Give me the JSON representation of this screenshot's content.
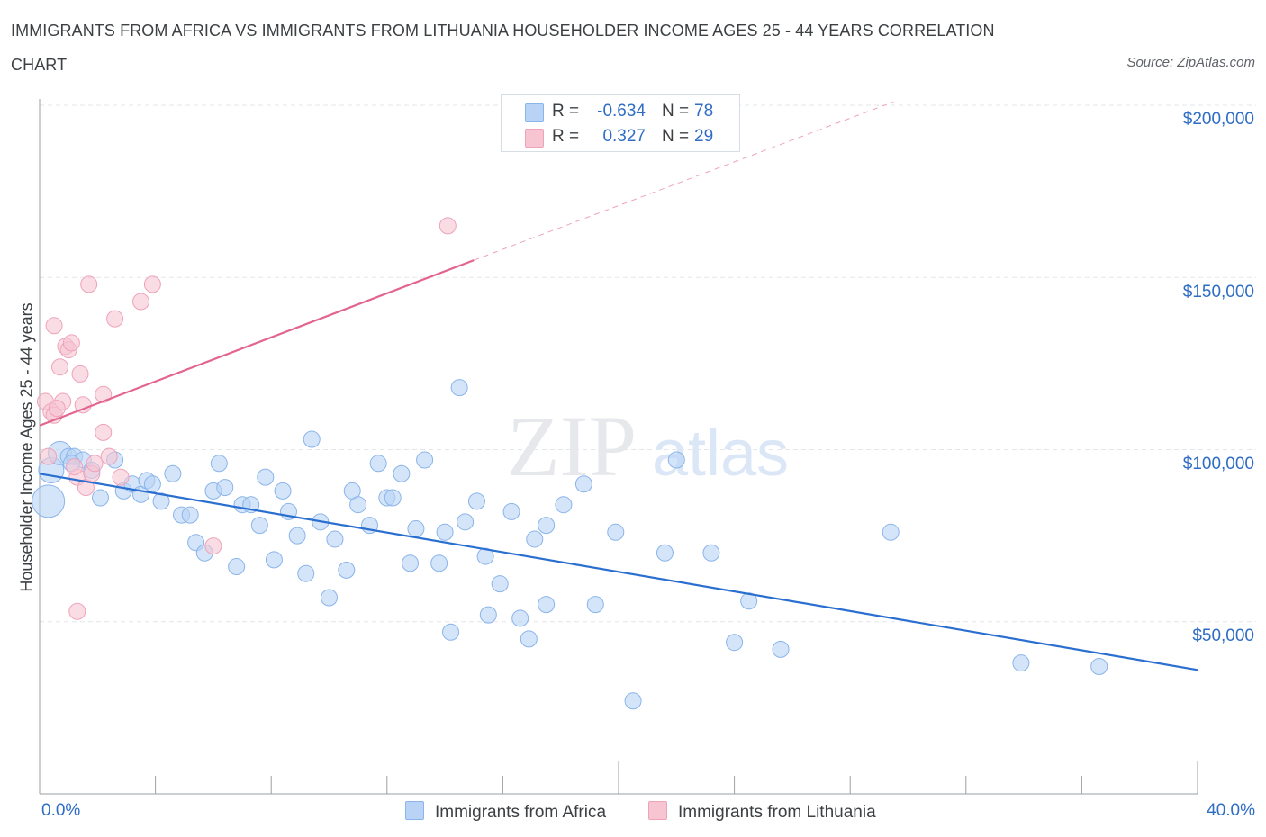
{
  "header": {
    "title_line1": "IMMIGRANTS FROM AFRICA VS IMMIGRANTS FROM LITHUANIA HOUSEHOLDER INCOME AGES 25 - 44 YEARS CORRELATION",
    "title_line2": "CHART",
    "source": "Source: ZipAtlas.com"
  },
  "legend": {
    "rows": [
      {
        "r_label": "R =",
        "r_value": "-0.634",
        "n_label": "N =",
        "n_value": "78"
      },
      {
        "r_label": "R =",
        "r_value": "0.327",
        "n_label": "N =",
        "n_value": "29"
      }
    ]
  },
  "watermark": {
    "zip": "ZIP",
    "atlas": "atlas"
  },
  "colors": {
    "africa_fill": "#b8d3f5",
    "africa_stroke": "#8ab4ea",
    "africa_line": "#2a6fd0",
    "lithuania_fill": "#f7c4d2",
    "lithuania_stroke": "#eea3ba",
    "lithuania_line": "#e2648f",
    "tick_label": "#2f6dc5",
    "grid": "#e3e6ea"
  },
  "chart_data": {
    "type": "scatter",
    "title": "IMMIGRANTS FROM AFRICA VS IMMIGRANTS FROM LITHUANIA HOUSEHOLDER INCOME AGES 25 - 44 YEARS CORRELATION CHART",
    "xlabel": "",
    "ylabel": "Householder Income Ages 25 - 44 years",
    "xlim": [
      0,
      40
    ],
    "ylim": [
      0,
      200000
    ],
    "x_tick_labels": [
      "0.0%",
      "40.0%"
    ],
    "y_ticks": [
      {
        "value": 50000,
        "label": "$50,000"
      },
      {
        "value": 100000,
        "label": "$100,000"
      },
      {
        "value": 150000,
        "label": "$150,000"
      },
      {
        "value": 200000,
        "label": "$200,000"
      }
    ],
    "grid": true,
    "legend_position": "top-center",
    "series": [
      {
        "name": "Immigrants from Africa",
        "r": -0.634,
        "n": 78,
        "trend": {
          "x0": 0.0,
          "y0": 93000,
          "x1": 40.0,
          "y1": 36000
        },
        "points": [
          [
            0.3,
            85000,
            18
          ],
          [
            0.4,
            94000,
            14
          ],
          [
            0.7,
            99000,
            13
          ],
          [
            1.0,
            98000,
            9
          ],
          [
            1.2,
            98000,
            9
          ],
          [
            1.5,
            97000,
            9
          ],
          [
            1.8,
            94000,
            9
          ],
          [
            2.1,
            86000,
            9
          ],
          [
            2.6,
            97000,
            9
          ],
          [
            2.9,
            88000,
            9
          ],
          [
            3.2,
            90000,
            9
          ],
          [
            3.5,
            87000,
            9
          ],
          [
            3.7,
            91000,
            9
          ],
          [
            3.9,
            90000,
            9
          ],
          [
            4.2,
            85000,
            9
          ],
          [
            4.6,
            93000,
            9
          ],
          [
            4.9,
            81000,
            9
          ],
          [
            5.2,
            81000,
            9
          ],
          [
            5.4,
            73000,
            9
          ],
          [
            5.7,
            70000,
            9
          ],
          [
            6.0,
            88000,
            9
          ],
          [
            6.2,
            96000,
            9
          ],
          [
            6.4,
            89000,
            9
          ],
          [
            6.8,
            66000,
            9
          ],
          [
            7.0,
            84000,
            9
          ],
          [
            7.3,
            84000,
            9
          ],
          [
            7.6,
            78000,
            9
          ],
          [
            7.8,
            92000,
            9
          ],
          [
            8.1,
            68000,
            9
          ],
          [
            8.4,
            88000,
            9
          ],
          [
            8.6,
            82000,
            9
          ],
          [
            8.9,
            75000,
            9
          ],
          [
            9.2,
            64000,
            9
          ],
          [
            9.4,
            103000,
            9
          ],
          [
            9.7,
            79000,
            9
          ],
          [
            10.0,
            57000,
            9
          ],
          [
            10.2,
            74000,
            9
          ],
          [
            10.6,
            65000,
            9
          ],
          [
            10.8,
            88000,
            9
          ],
          [
            11.0,
            84000,
            9
          ],
          [
            11.4,
            78000,
            9
          ],
          [
            11.7,
            96000,
            9
          ],
          [
            12.0,
            86000,
            9
          ],
          [
            12.2,
            86000,
            9
          ],
          [
            12.5,
            93000,
            9
          ],
          [
            12.8,
            67000,
            9
          ],
          [
            13.0,
            77000,
            9
          ],
          [
            13.3,
            97000,
            9
          ],
          [
            13.8,
            67000,
            9
          ],
          [
            14.0,
            76000,
            9
          ],
          [
            14.2,
            47000,
            9
          ],
          [
            14.5,
            118000,
            9
          ],
          [
            14.7,
            79000,
            9
          ],
          [
            15.1,
            85000,
            9
          ],
          [
            15.4,
            69000,
            9
          ],
          [
            15.5,
            52000,
            9
          ],
          [
            15.9,
            61000,
            9
          ],
          [
            16.3,
            82000,
            9
          ],
          [
            16.6,
            51000,
            9
          ],
          [
            16.9,
            45000,
            9
          ],
          [
            17.1,
            74000,
            9
          ],
          [
            17.5,
            78000,
            9
          ],
          [
            17.5,
            55000,
            9
          ],
          [
            18.1,
            84000,
            9
          ],
          [
            18.8,
            90000,
            9
          ],
          [
            19.2,
            55000,
            9
          ],
          [
            19.9,
            76000,
            9
          ],
          [
            20.5,
            27000,
            9
          ],
          [
            21.6,
            70000,
            9
          ],
          [
            22.0,
            97000,
            9
          ],
          [
            23.2,
            70000,
            9
          ],
          [
            24.0,
            44000,
            9
          ],
          [
            24.5,
            56000,
            9
          ],
          [
            25.6,
            42000,
            9
          ],
          [
            29.4,
            76000,
            9
          ],
          [
            33.9,
            38000,
            9
          ],
          [
            36.6,
            37000,
            9
          ],
          [
            1.1,
            96000,
            9
          ]
        ]
      },
      {
        "name": "Immigrants from Lithuania",
        "r": 0.327,
        "n": 29,
        "trend": {
          "x0": 0.0,
          "y0": 107000,
          "x1": 15.0,
          "y1": 155000
        },
        "trend_extended": {
          "x0": 15.0,
          "y0": 155000,
          "x1": 29.5,
          "y1": 201000
        },
        "points": [
          [
            0.2,
            114000,
            9
          ],
          [
            0.3,
            98000,
            9
          ],
          [
            0.4,
            111000,
            9
          ],
          [
            0.5,
            110000,
            9
          ],
          [
            0.5,
            136000,
            9
          ],
          [
            0.7,
            124000,
            9
          ],
          [
            0.8,
            114000,
            9
          ],
          [
            0.9,
            130000,
            9
          ],
          [
            1.0,
            129000,
            9
          ],
          [
            1.1,
            131000,
            9
          ],
          [
            1.3,
            92000,
            9
          ],
          [
            1.4,
            122000,
            9
          ],
          [
            1.5,
            113000,
            9
          ],
          [
            1.6,
            89000,
            9
          ],
          [
            1.7,
            148000,
            9
          ],
          [
            1.8,
            93000,
            9
          ],
          [
            1.9,
            96000,
            9
          ],
          [
            2.2,
            116000,
            9
          ],
          [
            2.2,
            105000,
            9
          ],
          [
            2.4,
            98000,
            9
          ],
          [
            2.6,
            138000,
            9
          ],
          [
            3.5,
            143000,
            9
          ],
          [
            3.9,
            148000,
            9
          ],
          [
            6.0,
            72000,
            9
          ],
          [
            1.3,
            53000,
            9
          ],
          [
            14.1,
            165000,
            9
          ],
          [
            0.6,
            112000,
            9
          ],
          [
            1.2,
            95000,
            9
          ],
          [
            2.8,
            92000,
            9
          ]
        ]
      }
    ]
  }
}
